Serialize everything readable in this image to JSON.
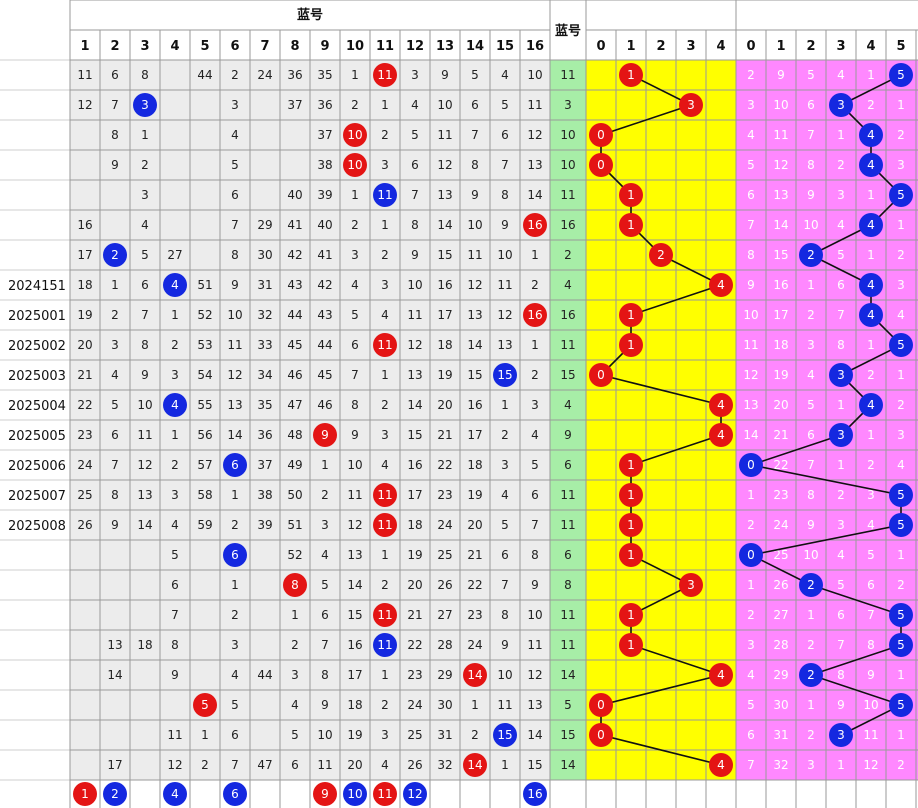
{
  "chart_data": {
    "type": "table",
    "header": {
      "blue_number_group": "蓝号",
      "blue_column": "蓝号"
    },
    "blue_columns": [
      "1",
      "2",
      "3",
      "4",
      "5",
      "6",
      "7",
      "8",
      "9",
      "10",
      "11",
      "12",
      "13",
      "14",
      "15",
      "16"
    ],
    "mod5_columns": [
      "0",
      "1",
      "2",
      "3",
      "4"
    ],
    "mod6_columns": [
      "0",
      "1",
      "2",
      "3",
      "4",
      "5"
    ],
    "periods": [
      "",
      "",
      "",
      "",
      "",
      "",
      "",
      "2024151",
      "2025001",
      "2025002",
      "2025003",
      "2025004",
      "2025005",
      "2025006",
      "2025007",
      "2025008",
      "",
      "",
      "",
      "",
      "",
      "",
      "",
      ""
    ],
    "blue_values": [
      11,
      3,
      10,
      10,
      11,
      16,
      2,
      4,
      16,
      11,
      15,
      4,
      9,
      6,
      11,
      11,
      6,
      8,
      11,
      11,
      14,
      5,
      15,
      14
    ],
    "mod5_values": [
      1,
      3,
      0,
      0,
      1,
      1,
      2,
      4,
      1,
      1,
      0,
      4,
      4,
      1,
      1,
      1,
      1,
      3,
      1,
      1,
      4,
      0,
      0,
      4
    ],
    "mod6_values": [
      5,
      3,
      4,
      4,
      5,
      4,
      2,
      4,
      4,
      5,
      3,
      4,
      3,
      0,
      5,
      5,
      0,
      2,
      5,
      5,
      2,
      5,
      3,
      null
    ],
    "blue_omission": [
      [
        "11",
        "6",
        "8",
        "",
        "44",
        "2",
        "24",
        "36",
        "35",
        "1",
        "11",
        "3",
        "9",
        "5",
        "4",
        "10"
      ],
      [
        "12",
        "7",
        "3",
        "",
        "",
        "3",
        "",
        "37",
        "36",
        "2",
        "1",
        "4",
        "10",
        "6",
        "5",
        "11"
      ],
      [
        "",
        "8",
        "1",
        "",
        "",
        "4",
        "",
        "",
        "37",
        "10",
        "2",
        "5",
        "11",
        "7",
        "6",
        "12"
      ],
      [
        "",
        "9",
        "2",
        "",
        "",
        "5",
        "",
        "",
        "38",
        "10",
        "3",
        "6",
        "12",
        "8",
        "7",
        "13"
      ],
      [
        "",
        "",
        "3",
        "",
        "",
        "6",
        "",
        "40",
        "39",
        "1",
        "11",
        "7",
        "13",
        "9",
        "8",
        "14"
      ],
      [
        "16",
        "",
        "4",
        "",
        "",
        "7",
        "29",
        "41",
        "40",
        "2",
        "1",
        "8",
        "14",
        "10",
        "9",
        "16"
      ],
      [
        "17",
        "2",
        "5",
        "27",
        "",
        "8",
        "30",
        "42",
        "41",
        "3",
        "2",
        "9",
        "15",
        "11",
        "10",
        "1"
      ],
      [
        "18",
        "1",
        "6",
        "4",
        "51",
        "9",
        "31",
        "43",
        "42",
        "4",
        "3",
        "10",
        "16",
        "12",
        "11",
        "2"
      ],
      [
        "19",
        "2",
        "7",
        "1",
        "52",
        "10",
        "32",
        "44",
        "43",
        "5",
        "4",
        "11",
        "17",
        "13",
        "12",
        "16"
      ],
      [
        "20",
        "3",
        "8",
        "2",
        "53",
        "11",
        "33",
        "45",
        "44",
        "6",
        "11",
        "12",
        "18",
        "14",
        "13",
        "1"
      ],
      [
        "21",
        "4",
        "9",
        "3",
        "54",
        "12",
        "34",
        "46",
        "45",
        "7",
        "1",
        "13",
        "19",
        "15",
        "15",
        "2"
      ],
      [
        "22",
        "5",
        "10",
        "4",
        "55",
        "13",
        "35",
        "47",
        "46",
        "8",
        "2",
        "14",
        "20",
        "16",
        "1",
        "3"
      ],
      [
        "23",
        "6",
        "11",
        "1",
        "56",
        "14",
        "36",
        "48",
        "9",
        "9",
        "3",
        "15",
        "21",
        "17",
        "2",
        "4"
      ],
      [
        "24",
        "7",
        "12",
        "2",
        "57",
        "6",
        "37",
        "49",
        "1",
        "10",
        "4",
        "16",
        "22",
        "18",
        "3",
        "5"
      ],
      [
        "25",
        "8",
        "13",
        "3",
        "58",
        "1",
        "38",
        "50",
        "2",
        "11",
        "11",
        "17",
        "23",
        "19",
        "4",
        "6"
      ],
      [
        "26",
        "9",
        "14",
        "4",
        "59",
        "2",
        "39",
        "51",
        "3",
        "12",
        "11",
        "18",
        "24",
        "20",
        "5",
        "7"
      ],
      [
        "",
        "",
        "",
        "5",
        "",
        "6",
        "",
        "52",
        "4",
        "13",
        "1",
        "19",
        "25",
        "21",
        "6",
        "8"
      ],
      [
        "",
        "",
        "",
        "6",
        "",
        "1",
        "",
        "8",
        "5",
        "14",
        "2",
        "20",
        "26",
        "22",
        "7",
        "9"
      ],
      [
        "",
        "",
        "",
        "7",
        "",
        "2",
        "",
        "1",
        "6",
        "15",
        "11",
        "21",
        "27",
        "23",
        "8",
        "10"
      ],
      [
        "",
        "13",
        "18",
        "8",
        "",
        "3",
        "",
        "2",
        "7",
        "16",
        "11",
        "22",
        "28",
        "24",
        "9",
        "11"
      ],
      [
        "",
        "14",
        "",
        "9",
        "",
        "4",
        "44",
        "3",
        "8",
        "17",
        "1",
        "23",
        "29",
        "14",
        "10",
        "12"
      ],
      [
        "",
        "",
        "",
        "",
        "5",
        "5",
        "",
        "4",
        "9",
        "18",
        "2",
        "24",
        "30",
        "1",
        "11",
        "13"
      ],
      [
        "",
        "",
        "",
        "11",
        "1",
        "6",
        "",
        "5",
        "10",
        "19",
        "3",
        "25",
        "31",
        "2",
        "15",
        "14"
      ],
      [
        "",
        "17",
        "",
        "12",
        "2",
        "7",
        "47",
        "6",
        "11",
        "20",
        "4",
        "26",
        "32",
        "14",
        "1",
        "15"
      ]
    ],
    "mod6_omission": [
      [
        "2",
        "9",
        "5",
        "4",
        "1",
        "5"
      ],
      [
        "3",
        "10",
        "6",
        "3",
        "2",
        "1"
      ],
      [
        "4",
        "11",
        "7",
        "1",
        "4",
        "2"
      ],
      [
        "5",
        "12",
        "8",
        "2",
        "4",
        "3"
      ],
      [
        "6",
        "13",
        "9",
        "3",
        "1",
        "5"
      ],
      [
        "7",
        "14",
        "10",
        "4",
        "4",
        "1"
      ],
      [
        "8",
        "15",
        "2",
        "5",
        "1",
        "2"
      ],
      [
        "9",
        "16",
        "1",
        "6",
        "4",
        "3"
      ],
      [
        "10",
        "17",
        "2",
        "7",
        "4",
        "4"
      ],
      [
        "11",
        "18",
        "3",
        "8",
        "1",
        "5"
      ],
      [
        "12",
        "19",
        "4",
        "3",
        "2",
        "1"
      ],
      [
        "13",
        "20",
        "5",
        "1",
        "4",
        "2"
      ],
      [
        "14",
        "21",
        "6",
        "3",
        "1",
        "3"
      ],
      [
        "0",
        "22",
        "7",
        "1",
        "2",
        "4"
      ],
      [
        "1",
        "23",
        "8",
        "2",
        "3",
        "5"
      ],
      [
        "2",
        "24",
        "9",
        "3",
        "4",
        "5"
      ],
      [
        "0",
        "25",
        "10",
        "4",
        "5",
        "1"
      ],
      [
        "1",
        "26",
        "2",
        "5",
        "6",
        "2"
      ],
      [
        "2",
        "27",
        "1",
        "6",
        "7",
        "5"
      ],
      [
        "3",
        "28",
        "2",
        "7",
        "8",
        "5"
      ],
      [
        "4",
        "29",
        "2",
        "8",
        "9",
        "1"
      ],
      [
        "5",
        "30",
        "1",
        "9",
        "10",
        "5"
      ],
      [
        "6",
        "31",
        "2",
        "3",
        "11",
        "1"
      ],
      [
        "7",
        "32",
        "3",
        "1",
        "12",
        "2"
      ]
    ],
    "bottom_row": [
      1,
      2,
      4,
      6,
      9,
      10,
      11,
      12,
      16
    ],
    "colors": {
      "red_ball": "#e41414",
      "blue_ball": "#1428e0",
      "blue_col_bg": "#a7eea7",
      "mod5_bg": "#ffff00",
      "mod6_bg": "#ff88ff",
      "table_bg": "#ececec",
      "grid": "#9a9a9a"
    }
  }
}
